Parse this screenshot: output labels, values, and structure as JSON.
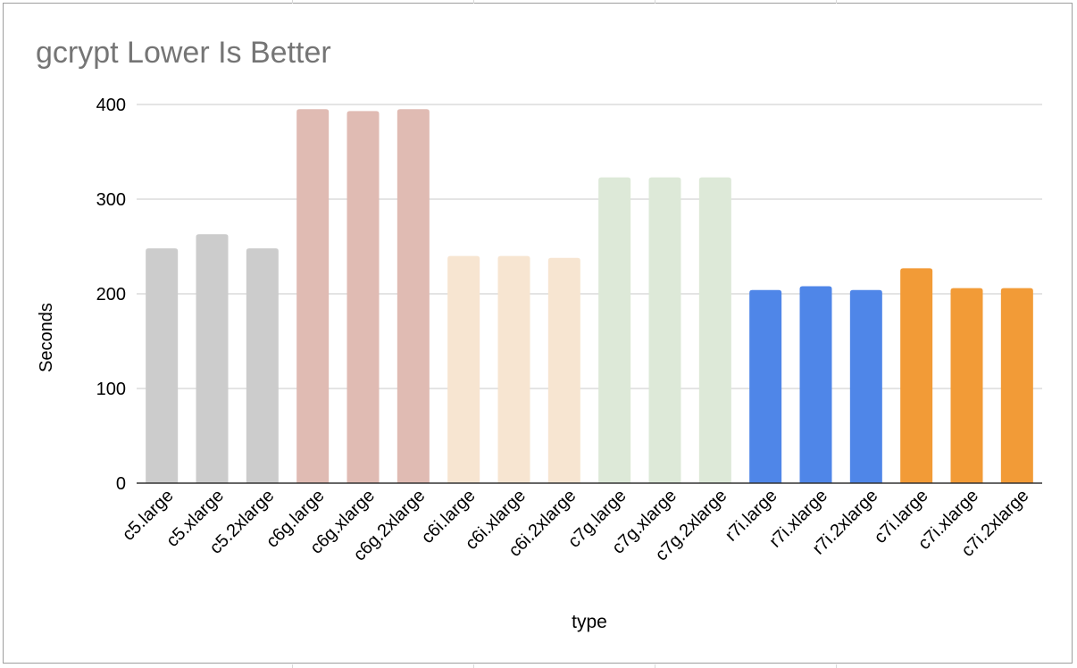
{
  "chart_data": {
    "type": "bar",
    "title": "gcrypt Lower Is Better",
    "xlabel": "type",
    "ylabel": "Seconds",
    "ylim": [
      0,
      400
    ],
    "yticks": [
      0,
      100,
      200,
      300,
      400
    ],
    "grid": true,
    "legend": "none",
    "categories": [
      "c5.large",
      "c5.xlarge",
      "c5.2xlarge",
      "c6g.large",
      "c6g.xlarge",
      "c6g.2xlarge",
      "c6i.large",
      "c6i.xlarge",
      "c6i.2xlarge",
      "c7g.large",
      "c7g.xlarge",
      "c7g.2xlarge",
      "r7i.large",
      "r7i.xlarge",
      "r7i.2xlarge",
      "c7i.large",
      "c7i.xlarge",
      "c7i.2xlarge"
    ],
    "values": [
      248,
      263,
      248,
      395,
      393,
      395,
      240,
      240,
      238,
      323,
      323,
      323,
      204,
      208,
      204,
      227,
      206,
      206
    ],
    "colors": [
      "#cccccc",
      "#cccccc",
      "#cccccc",
      "#e0bbb3",
      "#e0bbb3",
      "#e0bbb3",
      "#f7e5d1",
      "#f7e5d1",
      "#f7e5d1",
      "#dde9d8",
      "#dde9d8",
      "#dde9d8",
      "#4f86e8",
      "#4f86e8",
      "#4f86e8",
      "#f29b37",
      "#f29b37",
      "#f29b37"
    ]
  }
}
